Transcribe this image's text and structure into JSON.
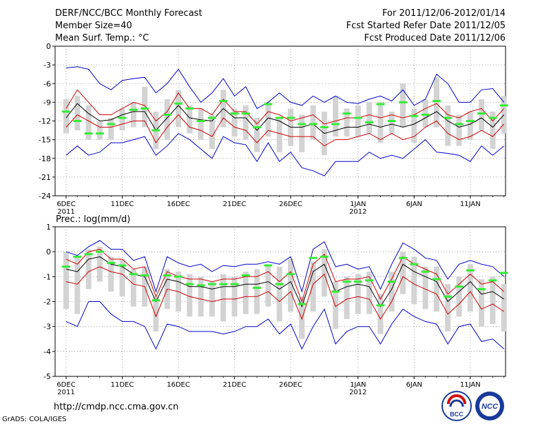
{
  "header": {
    "title": "DERF/NCC/BCC Monthly Forecast",
    "member_size": "Member Size=40",
    "variable": "Mean Surf. Temp.: °C",
    "for_range": "For 2011/12/06-2012/01/14",
    "started": "Fcst Started Refer Date 2011/12/05",
    "produced": "Fcst Produced Date 2011/12/06"
  },
  "footer": {
    "url": "http://cmdp.ncc.cma.gov.cn",
    "grads": "GrADS: COLA/IGES",
    "logo1": "BCC",
    "logo2": "NCC"
  },
  "colors": {
    "envelope": "#0000cc",
    "spread": "#cc0000",
    "mean": "#000000",
    "box": "#d3d3d3",
    "marker": "#33ee33",
    "grid": "#888888"
  },
  "chart_data": [
    {
      "type": "line",
      "title": "Mean Surf. Temp.: °C",
      "x": [
        1,
        2,
        3,
        4,
        5,
        6,
        7,
        8,
        9,
        10,
        11,
        12,
        13,
        14,
        15,
        16,
        17,
        18,
        19,
        20,
        21,
        22,
        23,
        24,
        25,
        26,
        27,
        28,
        29,
        30,
        31,
        32,
        33,
        34,
        35,
        36,
        37,
        38,
        39,
        40
      ],
      "ylim": [
        -24,
        0
      ],
      "yticks": [
        0,
        -3,
        -6,
        -9,
        -12,
        -15,
        -18,
        -21,
        -24
      ],
      "xticks": [
        {
          "x": 1,
          "label": "6DEC",
          "sublabel": "2011"
        },
        {
          "x": 6,
          "label": "11DEC"
        },
        {
          "x": 11,
          "label": "16DEC"
        },
        {
          "x": 16,
          "label": "21DEC"
        },
        {
          "x": 21,
          "label": "26DEC"
        },
        {
          "x": 27,
          "label": "1JAN",
          "sublabel": "2012"
        },
        {
          "x": 32,
          "label": "6JAN"
        },
        {
          "x": 37,
          "label": "11JAN"
        }
      ],
      "series": [
        {
          "name": "max",
          "values": [
            -3.5,
            -3.3,
            -3.7,
            -6,
            -7,
            -5.5,
            -5.2,
            -5,
            -7.5,
            -6,
            -3.7,
            -6.5,
            -9,
            -7.5,
            -5.2,
            -8,
            -6.5,
            -10,
            -9,
            -7.5,
            -9,
            -9.5,
            -8,
            -9,
            -8,
            -9,
            -9.2,
            -8.5,
            -8,
            -8.8,
            -7,
            -9.5,
            -8.5,
            -4.5,
            -6,
            -9,
            -9,
            -7,
            -6.8,
            -9
          ]
        },
        {
          "name": "upper",
          "values": [
            -10,
            -7,
            -9,
            -11,
            -11,
            -10,
            -9,
            -9.5,
            -12,
            -10.5,
            -7.5,
            -10,
            -10,
            -11,
            -8.5,
            -10.5,
            -10.5,
            -12.5,
            -10.5,
            -11,
            -12,
            -11.5,
            -11,
            -12.5,
            -12,
            -11.5,
            -11.5,
            -11,
            -11.5,
            -11,
            -11.5,
            -11,
            -10,
            -9.2,
            -11,
            -11.5,
            -10.5,
            -10,
            -12,
            -10
          ]
        },
        {
          "name": "mean",
          "values": [
            -11.5,
            -9.2,
            -10.8,
            -12,
            -11.8,
            -11,
            -10.5,
            -10.5,
            -13.5,
            -11.5,
            -9.5,
            -11.5,
            -11.8,
            -12,
            -10,
            -11.5,
            -11.5,
            -13.5,
            -11.5,
            -12,
            -13,
            -13,
            -12.5,
            -14,
            -13.5,
            -13,
            -13,
            -12.5,
            -13,
            -12.5,
            -13,
            -12.5,
            -11.5,
            -10.5,
            -12,
            -13,
            -12.5,
            -11.5,
            -13,
            -11
          ]
        },
        {
          "name": "lower",
          "values": [
            -13,
            -11,
            -12,
            -13,
            -13,
            -12.5,
            -12,
            -12,
            -15.5,
            -13,
            -11,
            -13,
            -13.5,
            -14.5,
            -11.5,
            -13,
            -13.5,
            -15.5,
            -13.5,
            -14,
            -14.5,
            -14.5,
            -14.5,
            -16,
            -15,
            -15,
            -14.5,
            -14,
            -15,
            -14,
            -15,
            -14.5,
            -13,
            -12,
            -14,
            -15,
            -14.5,
            -13.5,
            -14.5,
            -12.5
          ]
        },
        {
          "name": "min",
          "values": [
            -17.5,
            -16,
            -17.5,
            -17,
            -15.5,
            -15.5,
            -15,
            -14.5,
            -17.5,
            -16,
            -14,
            -15,
            -16.5,
            -18,
            -14.5,
            -15.5,
            -15.8,
            -18.5,
            -15.5,
            -18.5,
            -17,
            -19.5,
            -20,
            -20.8,
            -18.5,
            -18.5,
            -18.5,
            -17,
            -18,
            -17.5,
            -18,
            -16.5,
            -15,
            -17,
            -17.2,
            -17.5,
            -18.5,
            -16,
            -17.5,
            -16
          ]
        },
        {
          "name": "box_top",
          "values": [
            -8.5,
            -8,
            -9.5,
            -12,
            -11.5,
            -10,
            -9,
            -6.5,
            -10.5,
            -8.5,
            -7,
            -9.5,
            -10,
            -11,
            -7,
            -10,
            -9.5,
            -11.5,
            -9,
            -11.5,
            -10,
            -11,
            -9.5,
            -10.5,
            -8,
            -10,
            -9.5,
            -9,
            -9,
            -10.5,
            -6,
            -10,
            -8.5,
            -5,
            -9.5,
            -11,
            -10.5,
            -8.5,
            -10.5,
            -8
          ]
        },
        {
          "name": "box_bottom",
          "values": [
            -14,
            -13.5,
            -15,
            -15,
            -15,
            -13.5,
            -13,
            -13,
            -16.5,
            -15,
            -13,
            -14,
            -15,
            -16.5,
            -13,
            -14.5,
            -15,
            -17,
            -14.5,
            -17,
            -16,
            -17,
            -15,
            -17.5,
            -14.5,
            -14.5,
            -14.5,
            -14,
            -15.5,
            -14,
            -13,
            -15.5,
            -13,
            -13,
            -16,
            -16,
            -15,
            -13.5,
            -16.5,
            -14
          ]
        },
        {
          "name": "marker",
          "values": [
            -10.5,
            -12,
            -14,
            -14,
            -12.5,
            -11.5,
            -10.2,
            -10,
            -13.5,
            -11,
            -9.2,
            -10,
            -12,
            -11.5,
            -8.8,
            -10.8,
            -10.8,
            -13,
            -9.3,
            -11.5,
            -11.5,
            -12.5,
            -12.5,
            -13,
            -12.5,
            -10.8,
            -11.5,
            -12.2,
            -9.3,
            -12,
            -9,
            -11.2,
            -11,
            -8.8,
            -11.5,
            -12.5,
            -12,
            -10.8,
            -11.5,
            -9.5
          ]
        }
      ]
    },
    {
      "type": "line",
      "title": "Prec.: log(mm/d)",
      "x": [
        1,
        2,
        3,
        4,
        5,
        6,
        7,
        8,
        9,
        10,
        11,
        12,
        13,
        14,
        15,
        16,
        17,
        18,
        19,
        20,
        21,
        22,
        23,
        24,
        25,
        26,
        27,
        28,
        29,
        30,
        31,
        32,
        33,
        34,
        35,
        36,
        37,
        38,
        39,
        40
      ],
      "ylim": [
        -5,
        1
      ],
      "yticks": [
        1,
        0,
        -1,
        -2,
        -3,
        -4,
        -5
      ],
      "xticks": [
        {
          "x": 1,
          "label": "6DEC",
          "sublabel": "2011"
        },
        {
          "x": 6,
          "label": "11DEC"
        },
        {
          "x": 11,
          "label": "16DEC"
        },
        {
          "x": 16,
          "label": "21DEC"
        },
        {
          "x": 21,
          "label": "26DEC"
        },
        {
          "x": 27,
          "label": "1JAN",
          "sublabel": "2012"
        },
        {
          "x": 32,
          "label": "6JAN"
        },
        {
          "x": 37,
          "label": "11JAN"
        }
      ],
      "series": [
        {
          "name": "max",
          "values": [
            0,
            -0.15,
            0.2,
            0.45,
            0.1,
            0.1,
            -0.35,
            -0.2,
            -1.6,
            -0.2,
            -0.45,
            -0.6,
            -0.5,
            -0.8,
            -0.55,
            -0.6,
            -0.5,
            -0.5,
            -0.4,
            -0.5,
            -0.2,
            -1.6,
            0.1,
            0.4,
            -0.6,
            -0.5,
            -0.7,
            -0.6,
            -1.5,
            -0.5,
            0.35,
            0.1,
            -0.25,
            -0.35,
            -1.1,
            -0.5,
            -0.35,
            -0.5,
            -0.6,
            -1.0
          ]
        },
        {
          "name": "upper",
          "values": [
            -0.3,
            -0.5,
            0,
            0.1,
            -0.3,
            -0.3,
            -0.7,
            -0.6,
            -1.8,
            -0.8,
            -1,
            -1.1,
            -1.1,
            -1.2,
            -1.1,
            -1.1,
            -1,
            -1,
            -0.8,
            -1.2,
            -0.8,
            -2.0,
            -0.5,
            -0.1,
            -1.2,
            -1.1,
            -1.1,
            -1,
            -1.9,
            -1.1,
            -0.2,
            -0.5,
            -0.7,
            -0.9,
            -1.7,
            -1.3,
            -0.9,
            -1.3,
            -1.2,
            -1.6
          ]
        },
        {
          "name": "mean",
          "values": [
            -0.7,
            -0.8,
            -0.3,
            -0.2,
            -0.5,
            -0.6,
            -0.9,
            -1,
            -2.0,
            -1.1,
            -1.2,
            -1.4,
            -1.4,
            -1.5,
            -1.4,
            -1.4,
            -1.3,
            -1.3,
            -1.2,
            -1.5,
            -1.2,
            -2.2,
            -0.8,
            -0.5,
            -1.6,
            -1.4,
            -1.3,
            -1.4,
            -2.2,
            -1.5,
            -0.5,
            -0.8,
            -1,
            -1.2,
            -2.0,
            -1.6,
            -1.2,
            -1.7,
            -1.6,
            -1.9
          ]
        },
        {
          "name": "lower",
          "values": [
            -1.2,
            -1.3,
            -0.8,
            -0.6,
            -0.8,
            -0.9,
            -1.3,
            -1.4,
            -2.6,
            -1.5,
            -1.6,
            -1.8,
            -1.9,
            -2,
            -1.9,
            -1.9,
            -1.8,
            -1.8,
            -1.6,
            -2,
            -1.6,
            -2.7,
            -1.3,
            -0.9,
            -2.2,
            -1.9,
            -1.8,
            -1.9,
            -2.7,
            -2,
            -1,
            -1.3,
            -1.5,
            -1.7,
            -2.5,
            -2.1,
            -1.6,
            -2.3,
            -2.1,
            -2.4
          ]
        },
        {
          "name": "min",
          "values": [
            -2.8,
            -3.0,
            -2.0,
            -2.0,
            -2.5,
            -2.8,
            -2.8,
            -3.0,
            -3.9,
            -2.9,
            -3.0,
            -3.2,
            -3.2,
            -3.2,
            -3.3,
            -3.2,
            -3.0,
            -3.0,
            -2.7,
            -3.3,
            -2.9,
            -3.9,
            -3.0,
            -2.3,
            -3.7,
            -3.2,
            -3.0,
            -3.0,
            -3.7,
            -2.9,
            -2.3,
            -2.6,
            -2.8,
            -2.9,
            -3.7,
            -3.0,
            -2.9,
            -3.6,
            -3.5,
            -3.9
          ]
        },
        {
          "name": "box_top",
          "values": [
            0,
            -0.2,
            0.1,
            0.2,
            -0.2,
            -0.3,
            -0.7,
            -0.6,
            -1.8,
            -0.7,
            -0.8,
            -0.9,
            -1,
            -1.2,
            -0.9,
            -1,
            -0.8,
            -0.7,
            -0.5,
            -0.6,
            -0.3,
            -1.8,
            -0.4,
            0.1,
            -1.2,
            -1,
            -0.9,
            -0.8,
            -1.7,
            -0.8,
            0,
            -0.2,
            -0.6,
            -0.6,
            -1.3,
            -1,
            -0.5,
            -1.1,
            -1.0,
            -1.3
          ]
        },
        {
          "name": "box_bottom",
          "values": [
            -2.3,
            -2.5,
            -1.5,
            -1.2,
            -1.6,
            -1.8,
            -2.2,
            -2.2,
            -3.2,
            -2.3,
            -2.4,
            -2.6,
            -2.6,
            -2.6,
            -2.8,
            -2.6,
            -2.5,
            -2.5,
            -2.2,
            -2.8,
            -2.4,
            -3.5,
            -2.4,
            -1.8,
            -3.1,
            -2.7,
            -2.5,
            -2.5,
            -3.3,
            -2.4,
            -1.7,
            -2.1,
            -2.3,
            -2.4,
            -3.2,
            -2.6,
            -2.4,
            -3.0,
            -2.9,
            -3.2
          ]
        },
        {
          "name": "marker",
          "values": [
            -0.6,
            -0.2,
            -0.1,
            0,
            -0.45,
            -0.55,
            -0.9,
            -0.95,
            -1.95,
            -0.95,
            -1,
            -1.3,
            -1.35,
            -1.3,
            -1.3,
            -1.3,
            -0.95,
            -1.45,
            -0.55,
            -1.3,
            -0.9,
            -2.1,
            -0.25,
            -0.2,
            -1.6,
            -1.2,
            -1.2,
            -1.15,
            -2.15,
            -1.2,
            -0.25,
            -0.5,
            -0.8,
            -1.1,
            -1.8,
            -1.4,
            -0.75,
            -1.5,
            -1.15,
            -0.85
          ]
        }
      ]
    }
  ]
}
